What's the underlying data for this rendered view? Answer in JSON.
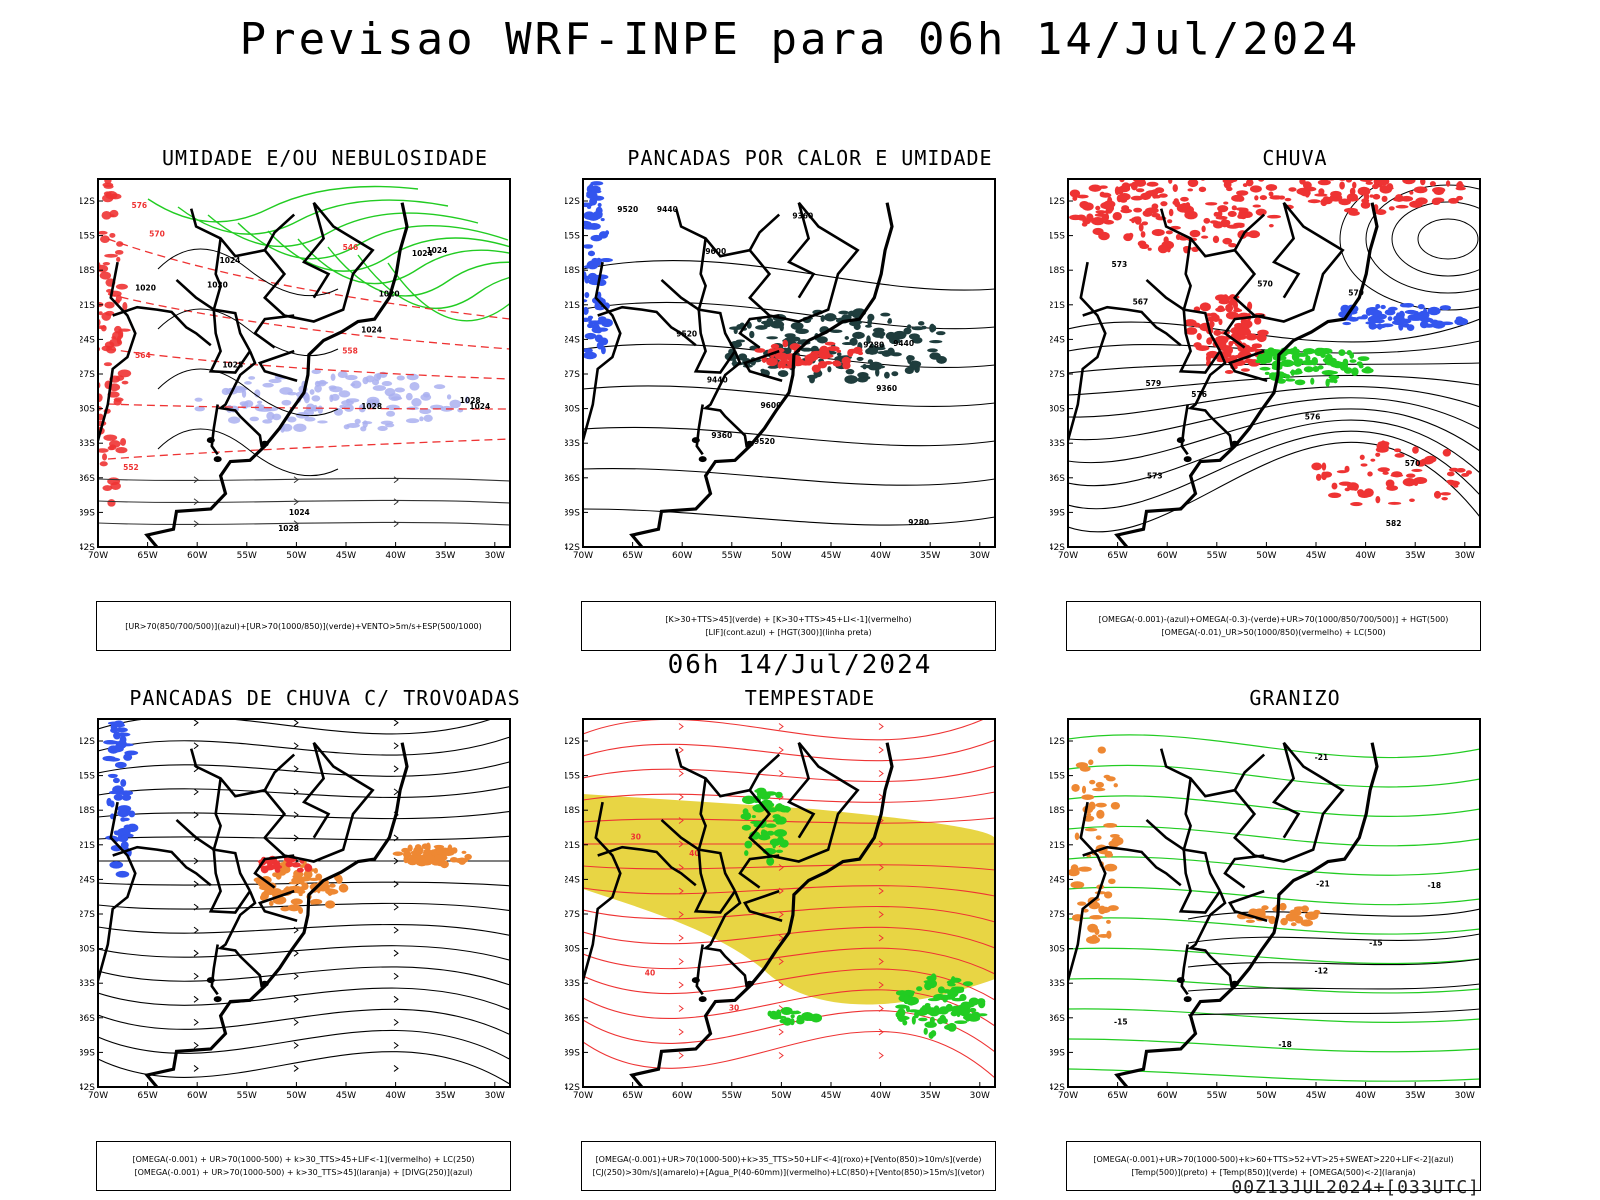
{
  "title": "Previsao WRF-INPE  para 06h 14/Jul/2024",
  "subtitle": "06h 14/Jul/2024",
  "footer": "00Z13JUL2024+[033UTC]",
  "axes": {
    "lat_labels": [
      "12S",
      "15S",
      "18S",
      "21S",
      "24S",
      "27S",
      "30S",
      "33S",
      "36S",
      "39S",
      "42S"
    ],
    "lon_labels": [
      "70W",
      "65W",
      "60W",
      "55W",
      "50W",
      "45W",
      "40W",
      "35W",
      "30W"
    ]
  },
  "colors": {
    "green": "#22cc22",
    "blue": "#3355ee",
    "red": "#ee3333",
    "lightblue": "#aab0f0",
    "orange": "#ee8833",
    "yellow": "#e6d030",
    "darkteal": "#1f3d3d",
    "black": "#000000"
  },
  "panels": [
    {
      "id": "umidade",
      "title": "UMIDADE E/OU NEBULOSIDADE",
      "legend": [
        "[UR>70(850/700/500)](azul)+[UR>70(1000/850)](verde)+VENTO>5m/s+ESP(500/1000)"
      ],
      "contour_labels": [
        "1020",
        "1020",
        "1024",
        "1024",
        "1024",
        "1028",
        "1028",
        "1028",
        "1024",
        "1024",
        "1028",
        "1024",
        "1020",
        "570",
        "564",
        "558",
        "552",
        "546",
        "576"
      ]
    },
    {
      "id": "pancadas",
      "title": "PANCADAS POR CALOR E UMIDADE",
      "legend": [
        "[K>30+TTS>45](verde) + [K>30+TTS>45+LI<-1](vermelho)",
        "[LIF](cont.azul) + [HGT(300)](linha preta)"
      ],
      "contour_labels": [
        "9600",
        "9520",
        "9440",
        "9360",
        "9280",
        "9600",
        "9520",
        "9440",
        "9360",
        "9280",
        "9440",
        "9360",
        "9520"
      ]
    },
    {
      "id": "chuva",
      "title": "CHUVA",
      "legend": [
        "[OMEGA(-0.001)-(azul)+OMEGA(-0.3)-(verde)+UR>70(1000/850/700/500)] + HGT(500)",
        "[OMEGA(-0.01)_UR>50(1000/850)(vermelho) + LC(500)"
      ],
      "contour_labels": [
        "582",
        "579",
        "576",
        "573",
        "570",
        "567",
        "573",
        "576",
        "579",
        "570"
      ]
    },
    {
      "id": "trovoadas",
      "title": "PANCADAS DE CHUVA C/ TROVOADAS",
      "legend": [
        "[OMEGA(-0.001) + UR>70(1000-500) + k>30_TTS>45+LIF<-1](vermelho) + LC(250)",
        "[OMEGA(-0.001) + UR>70(1000-500) + k>30_TTS>45](laranja) + [DIVG(250)](azul)"
      ]
    },
    {
      "id": "tempestade",
      "title": "TEMPESTADE",
      "legend": [
        "[OMEGA(-0.001)+UR>70(1000-500)+k>35_TTS>50+LIF<-4](roxo)+[Vento(850)>10m/s](verde)",
        "[CJ(250)>30m/s](amarelo)+[Agua_P(40-60mm)](vermelho)+LC(850)+[Vento(850)>15m/s](vetor)"
      ],
      "contour_labels": [
        "40",
        "40",
        "30",
        "30"
      ]
    },
    {
      "id": "granizo",
      "title": "GRANIZO",
      "legend": [
        "[OMEGA(-0.001)+UR>70(1000-500)+k>60+TTS>52+VT>25+SWEAT>220+LIF<-2](azul)",
        "[Temp(500)](preto) + [Temp(850)](verde) + [OMEGA(500)<-2](laranja)"
      ],
      "contour_labels": [
        "-12",
        "-15",
        "-18",
        "-21",
        "-18",
        "-15",
        "-21"
      ]
    }
  ]
}
